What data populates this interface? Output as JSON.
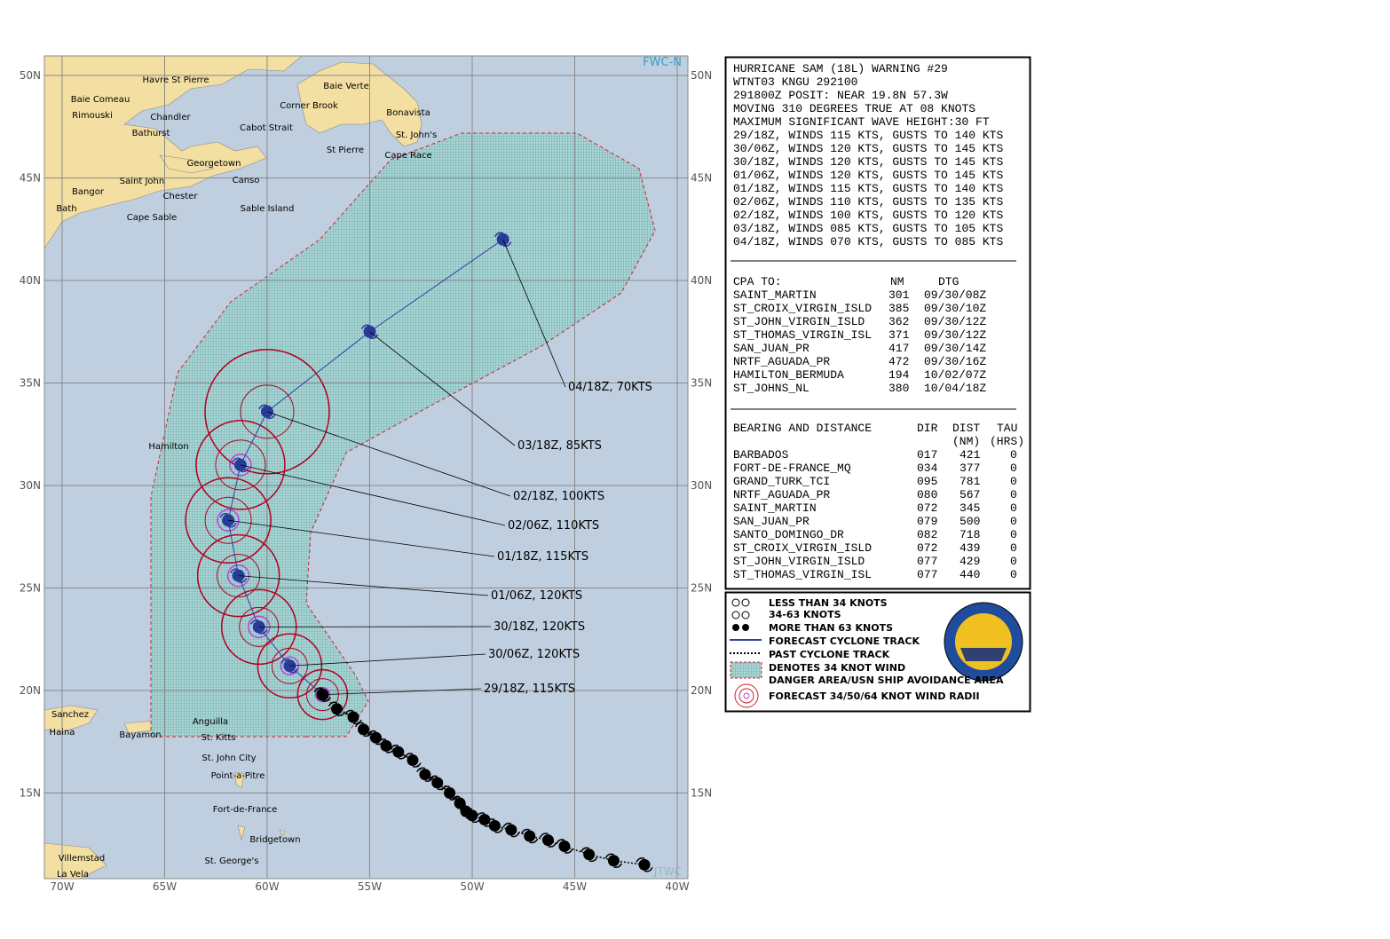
{
  "map": {
    "watermark": "FWC-N",
    "watermark2": "JTWC",
    "lat_ticks": [
      {
        "value": 50,
        "label": "50N"
      },
      {
        "value": 45,
        "label": "45N"
      },
      {
        "value": 40,
        "label": "40N"
      },
      {
        "value": 35,
        "label": "35N"
      },
      {
        "value": 30,
        "label": "30N"
      },
      {
        "value": 25,
        "label": "25N"
      },
      {
        "value": 20,
        "label": "20N"
      },
      {
        "value": 15,
        "label": "15N"
      }
    ],
    "lon_ticks": [
      {
        "value": -70,
        "label": "70W"
      },
      {
        "value": -65,
        "label": "65W"
      },
      {
        "value": -60,
        "label": "60W"
      },
      {
        "value": -55,
        "label": "55W"
      },
      {
        "value": -50,
        "label": "50W"
      },
      {
        "value": -45,
        "label": "45W"
      },
      {
        "value": -40,
        "label": "40W"
      }
    ],
    "places": [
      "Havre St Pierre",
      "Baie Verte",
      "Baie Comeau",
      "Corner Brook",
      "Bonavista",
      "Rimouski",
      "Chandler",
      "Cabot Strait",
      "St. John's",
      "Bathurst",
      "Georgetown",
      "St Pierre",
      "Cape Race",
      "Saint John",
      "Canso",
      "Bangor",
      "Chester",
      "Bath",
      "Sable Island",
      "Cape Sable",
      "Hamilton",
      "Sanchez",
      "Anguilla",
      "Haina",
      "Bayamon",
      "St. Kitts",
      "St. John City",
      "Point-a-Pitre",
      "Fort-de-France",
      "Bridgetown",
      "St. George's",
      "Villemstad",
      "La Vela"
    ],
    "forecast_track": [
      {
        "lat": 19.8,
        "lon": -57.3,
        "label": "29/18Z, 115KTS"
      },
      {
        "lat": 21.2,
        "lon": -58.9,
        "label": "30/06Z, 120KTS"
      },
      {
        "lat": 23.1,
        "lon": -60.4,
        "label": "30/18Z, 120KTS"
      },
      {
        "lat": 25.6,
        "lon": -61.4,
        "label": "01/06Z, 120KTS"
      },
      {
        "lat": 28.3,
        "lon": -61.9,
        "label": "01/18Z, 115KTS"
      },
      {
        "lat": 31.0,
        "lon": -61.3,
        "label": "02/06Z, 110KTS"
      },
      {
        "lat": 33.6,
        "lon": -60.0,
        "label": "02/18Z, 100KTS"
      },
      {
        "lat": 37.5,
        "lon": -55.0,
        "label": "03/18Z, 85KTS"
      },
      {
        "lat": 42.0,
        "lon": -48.5,
        "label": "04/18Z, 70KTS"
      }
    ],
    "past_track": [
      {
        "lat": 19.1,
        "lon": -56.6
      },
      {
        "lat": 18.7,
        "lon": -55.8
      },
      {
        "lat": 18.1,
        "lon": -55.3
      },
      {
        "lat": 17.7,
        "lon": -54.7
      },
      {
        "lat": 17.3,
        "lon": -54.2
      },
      {
        "lat": 17.0,
        "lon": -53.6
      },
      {
        "lat": 16.6,
        "lon": -52.9
      },
      {
        "lat": 15.9,
        "lon": -52.3
      },
      {
        "lat": 15.5,
        "lon": -51.7
      },
      {
        "lat": 15.0,
        "lon": -51.1
      },
      {
        "lat": 14.5,
        "lon": -50.6
      },
      {
        "lat": 14.1,
        "lon": -50.3
      },
      {
        "lat": 13.9,
        "lon": -50.0
      },
      {
        "lat": 13.7,
        "lon": -49.4
      },
      {
        "lat": 13.4,
        "lon": -48.9
      },
      {
        "lat": 13.2,
        "lon": -48.1
      },
      {
        "lat": 12.9,
        "lon": -47.2
      },
      {
        "lat": 12.7,
        "lon": -46.3
      },
      {
        "lat": 12.4,
        "lon": -45.5
      },
      {
        "lat": 12.0,
        "lon": -44.3
      },
      {
        "lat": 11.7,
        "lon": -43.1
      },
      {
        "lat": 11.5,
        "lon": -41.6
      }
    ]
  },
  "warning": {
    "lines": [
      "HURRICANE SAM (18L) WARNING #29",
      "WTNT03 KNGU 292100",
      "291800Z POSIT: NEAR 19.8N 57.3W",
      "MOVING 310 DEGREES TRUE AT 08 KNOTS",
      "MAXIMUM SIGNIFICANT WAVE HEIGHT:30 FT",
      "29/18Z, WINDS 115 KTS, GUSTS TO 140 KTS",
      "30/06Z, WINDS 120 KTS, GUSTS TO 145 KTS",
      "30/18Z, WINDS 120 KTS, GUSTS TO 145 KTS",
      "01/06Z, WINDS 120 KTS, GUSTS TO 145 KTS",
      "01/18Z, WINDS 115 KTS, GUSTS TO 140 KTS",
      "02/06Z, WINDS 110 KTS, GUSTS TO 135 KTS",
      "02/18Z, WINDS 100 KTS, GUSTS TO 120 KTS",
      "03/18Z, WINDS 085 KTS, GUSTS TO 105 KTS",
      "04/18Z, WINDS 070 KTS, GUSTS TO 085 KTS"
    ]
  },
  "cpa": {
    "header": [
      "CPA TO:",
      "NM",
      "DTG"
    ],
    "rows": [
      [
        "SAINT_MARTIN",
        "301",
        "09/30/08Z"
      ],
      [
        "ST_CROIX_VIRGIN_ISLD",
        "385",
        "09/30/10Z"
      ],
      [
        "ST_JOHN_VIRGIN_ISLD",
        "362",
        "09/30/12Z"
      ],
      [
        "ST_THOMAS_VIRGIN_ISL",
        "371",
        "09/30/12Z"
      ],
      [
        "SAN_JUAN_PR",
        "417",
        "09/30/14Z"
      ],
      [
        "NRTF_AGUADA_PR",
        "472",
        "09/30/16Z"
      ],
      [
        "HAMILTON_BERMUDA",
        "194",
        "10/02/07Z"
      ],
      [
        "ST_JOHNS_NL",
        "380",
        "10/04/18Z"
      ]
    ]
  },
  "bearing": {
    "header": [
      "BEARING AND DISTANCE",
      "DIR",
      "DIST",
      "(NM)",
      "TAU",
      "(HRS)"
    ],
    "rows": [
      [
        "BARBADOS",
        "017",
        "421",
        "0"
      ],
      [
        "FORT-DE-FRANCE_MQ",
        "034",
        "377",
        "0"
      ],
      [
        "GRAND_TURK_TCI",
        "095",
        "781",
        "0"
      ],
      [
        "NRTF_AGUADA_PR",
        "080",
        "567",
        "0"
      ],
      [
        "SAINT_MARTIN",
        "072",
        "345",
        "0"
      ],
      [
        "SAN_JUAN_PR",
        "079",
        "500",
        "0"
      ],
      [
        "SANTO_DOMINGO_DR",
        "082",
        "718",
        "0"
      ],
      [
        "ST_CROIX_VIRGIN_ISLD",
        "072",
        "439",
        "0"
      ],
      [
        "ST_JOHN_VIRGIN_ISLD",
        "077",
        "429",
        "0"
      ],
      [
        "ST_THOMAS_VIRGIN_ISL",
        "077",
        "440",
        "0"
      ]
    ]
  },
  "legend": {
    "items": [
      "LESS THAN 34 KNOTS",
      "34-63 KNOTS",
      "MORE THAN 63 KNOTS",
      "FORECAST CYCLONE TRACK",
      "PAST CYCLONE TRACK",
      "DENOTES 34 KNOT WIND",
      "DANGER AREA/USN SHIP AVOIDANCE AREA",
      "FORECAST 34/50/64 KNOT WIND RADII"
    ]
  }
}
